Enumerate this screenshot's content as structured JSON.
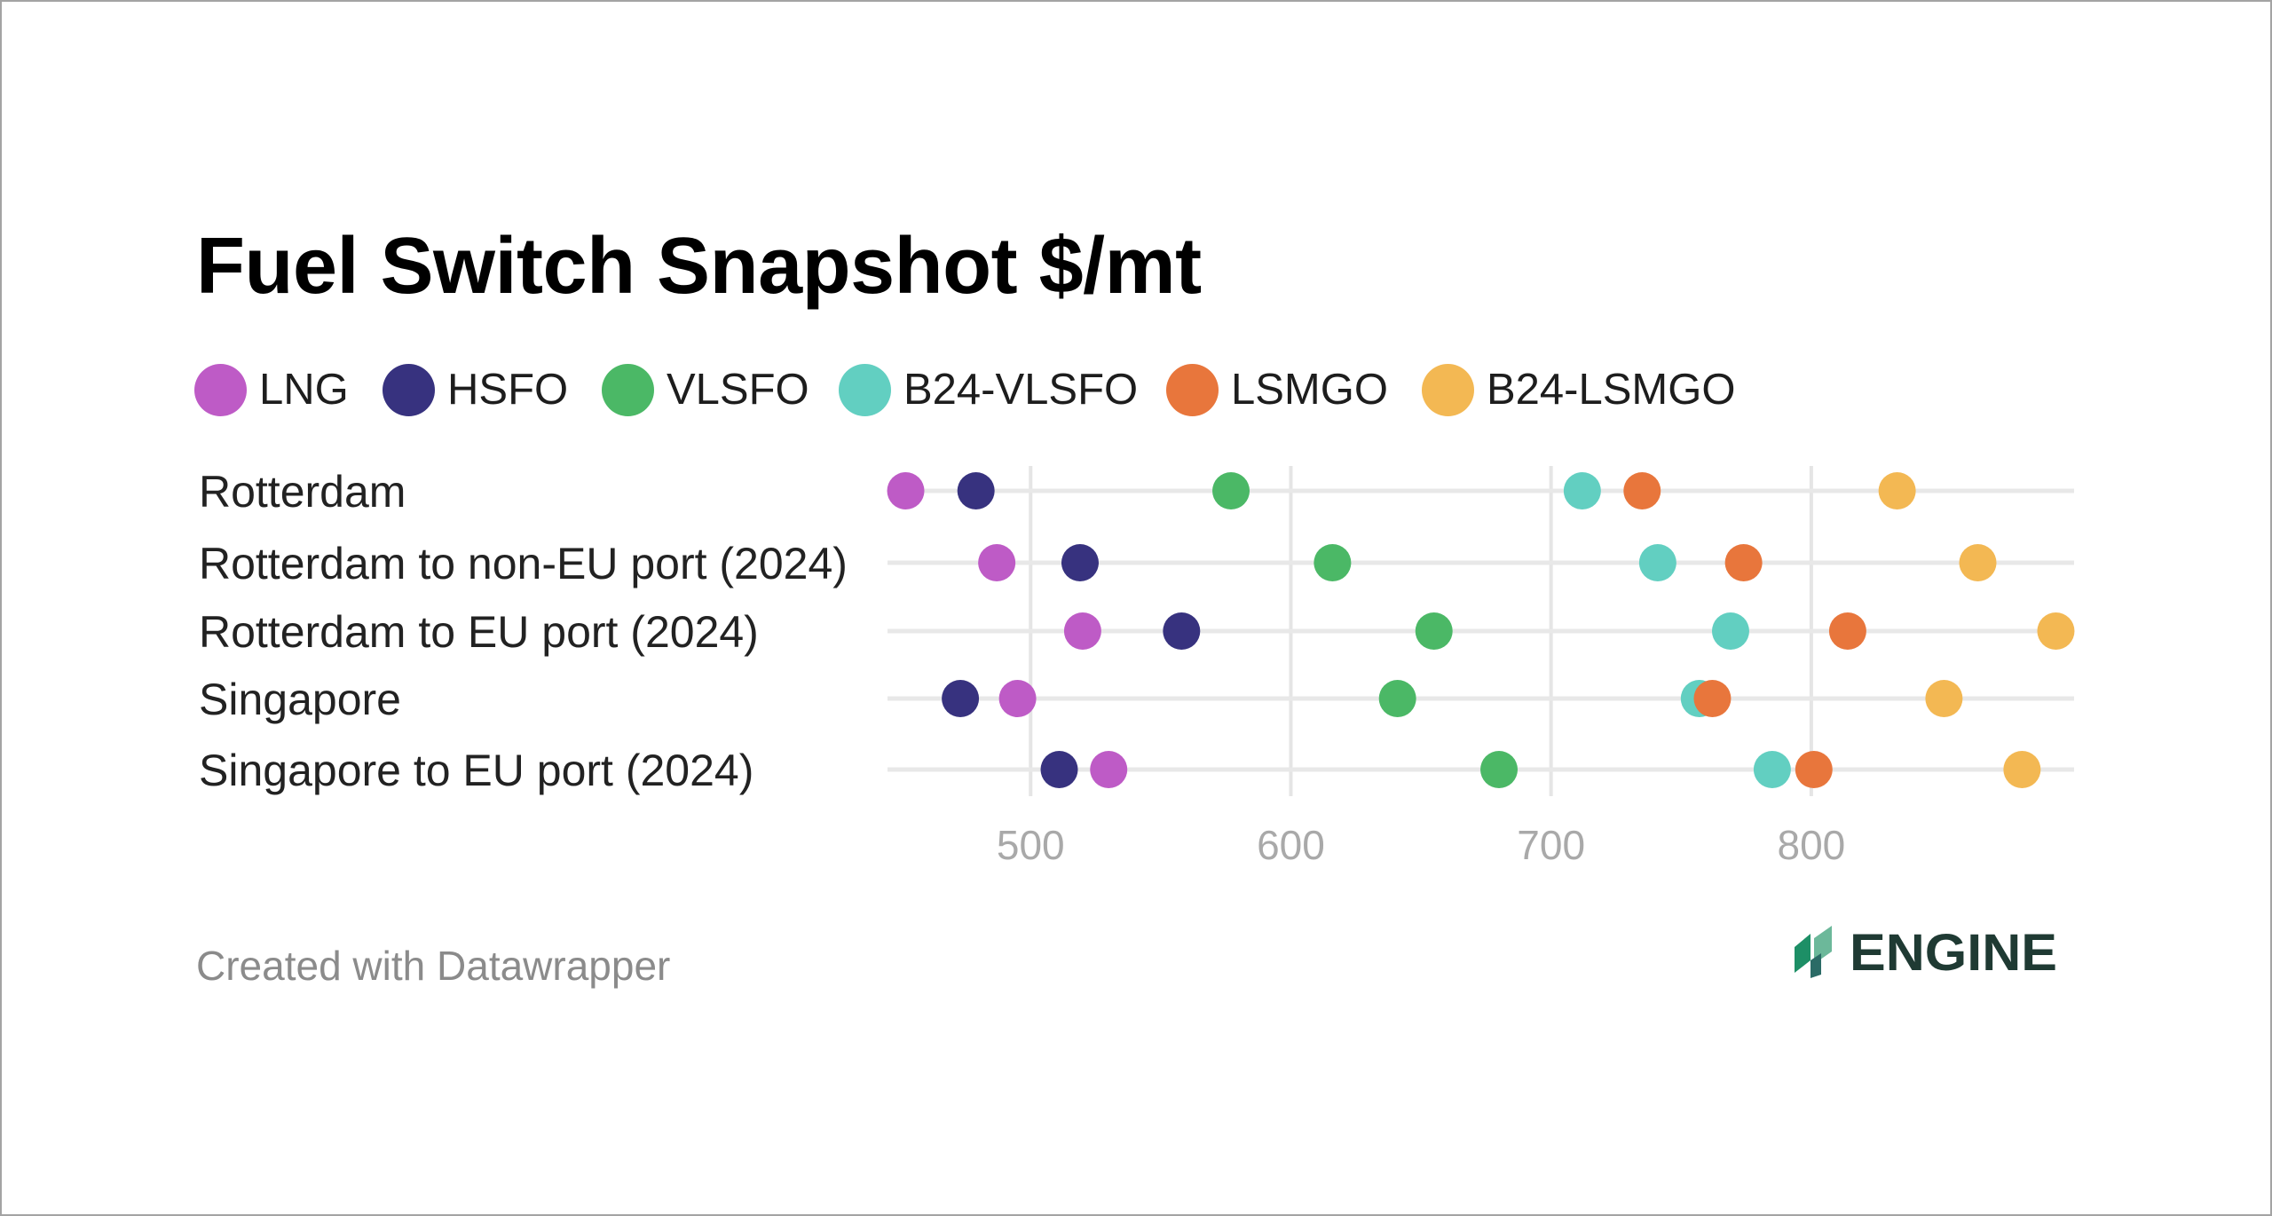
{
  "chart_data": {
    "type": "scatter",
    "subtype": "dot-plot",
    "title": "Fuel Switch Snapshot $/mt",
    "xlabel": "",
    "ylabel": "",
    "xlim": [
      445,
      901
    ],
    "x_ticks": [
      500,
      600,
      700,
      800
    ],
    "x_tick_labels": [
      "500",
      "600",
      "700",
      "800"
    ],
    "grid": "vertical",
    "legend_position": "top-left",
    "categories": [
      "Rotterdam",
      "Rotterdam to non-EU port (2024)",
      "Rotterdam to EU port (2024)",
      "Singapore",
      "Singapore to EU port (2024)"
    ],
    "series": [
      {
        "name": "LNG",
        "color": "#BE5BC6",
        "values": [
          452,
          487,
          520,
          495,
          530
        ]
      },
      {
        "name": "HSFO",
        "color": "#37327F",
        "values": [
          479,
          519,
          558,
          473,
          511
        ]
      },
      {
        "name": "VLSFO",
        "color": "#4BB866",
        "values": [
          577,
          616,
          655,
          641,
          680
        ]
      },
      {
        "name": "B24-VLSFO",
        "color": "#62CFC1",
        "values": [
          712,
          741,
          769,
          757,
          785
        ]
      },
      {
        "name": "LSMGO",
        "color": "#E8763C",
        "values": [
          735,
          774,
          814,
          762,
          801
        ]
      },
      {
        "name": "B24-LSMGO",
        "color": "#F3B853",
        "values": [
          833,
          864,
          894,
          851,
          881
        ]
      }
    ]
  },
  "footer": {
    "credit": "Created with Datawrapper"
  },
  "logo": {
    "text": "ENGINE",
    "colors": {
      "wordmark": "#1F3A33",
      "leaf_dark": "#1D8F66",
      "leaf_light": "#6CB89A",
      "leaf_teal": "#2B6B66"
    }
  }
}
